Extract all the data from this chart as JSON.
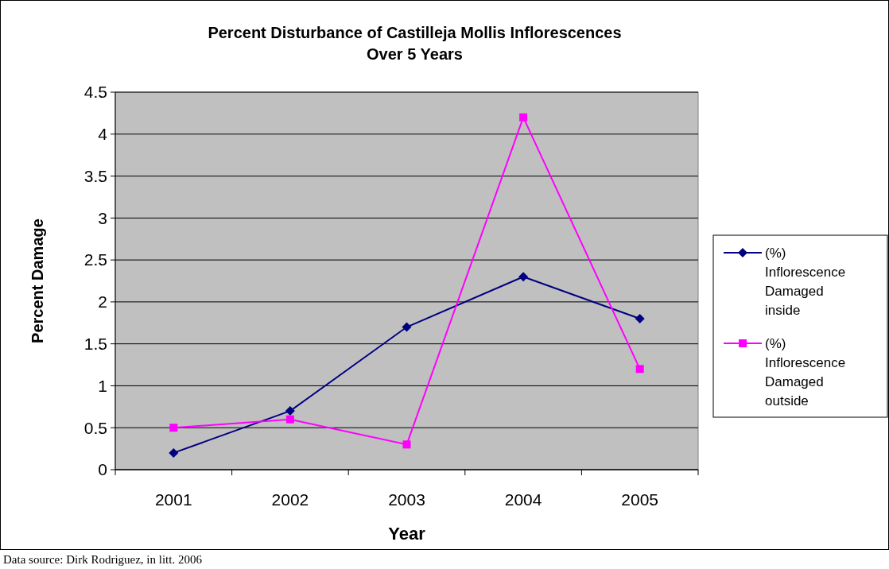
{
  "chart_data": {
    "type": "line",
    "title": "Percent Disturbance of Castilleja Mollis Inflorescences\nOver 5 Years",
    "xlabel": "Year",
    "ylabel": "Percent Damage",
    "categories": [
      "2001",
      "2002",
      "2003",
      "2004",
      "2005"
    ],
    "series": [
      {
        "name": "(%) Inflorescence Damaged inside",
        "color": "#000080",
        "marker": "diamond",
        "values": [
          0.2,
          0.7,
          1.7,
          2.3,
          1.8
        ]
      },
      {
        "name": "(%) Inflorescence Damaged outside",
        "color": "#ff00ff",
        "marker": "square",
        "values": [
          0.5,
          0.6,
          0.3,
          4.2,
          1.2
        ]
      }
    ],
    "ylim": [
      0,
      4.5
    ],
    "yticks": [
      0,
      0.5,
      1,
      1.5,
      2,
      2.5,
      3,
      3.5,
      4,
      4.5
    ],
    "grid": "y",
    "legend": "right",
    "annotations": [
      "Data source: Dirk Rodriguez, in litt. 2006"
    ]
  }
}
